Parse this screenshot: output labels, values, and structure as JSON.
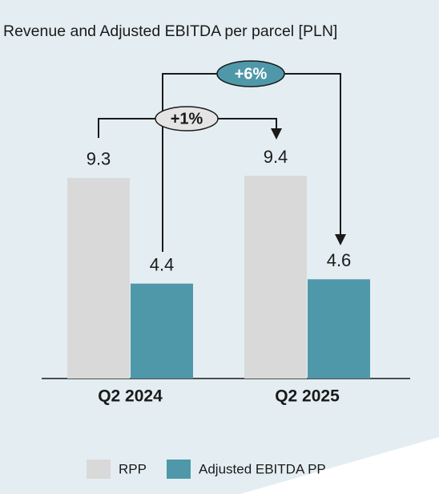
{
  "chart_data": {
    "type": "bar",
    "title": "Revenue and Adjusted EBITDA per parcel [PLN]",
    "categories": [
      "Q2 2024",
      "Q2 2025"
    ],
    "series": [
      {
        "name": "RPP",
        "color": "#d9d9d9",
        "values": [
          9.3,
          9.4
        ]
      },
      {
        "name": "Adjusted EBITDA PP",
        "color": "#4f98a9",
        "values": [
          4.4,
          4.6
        ]
      }
    ],
    "annotations": [
      "+1%",
      "+6%"
    ]
  }
}
